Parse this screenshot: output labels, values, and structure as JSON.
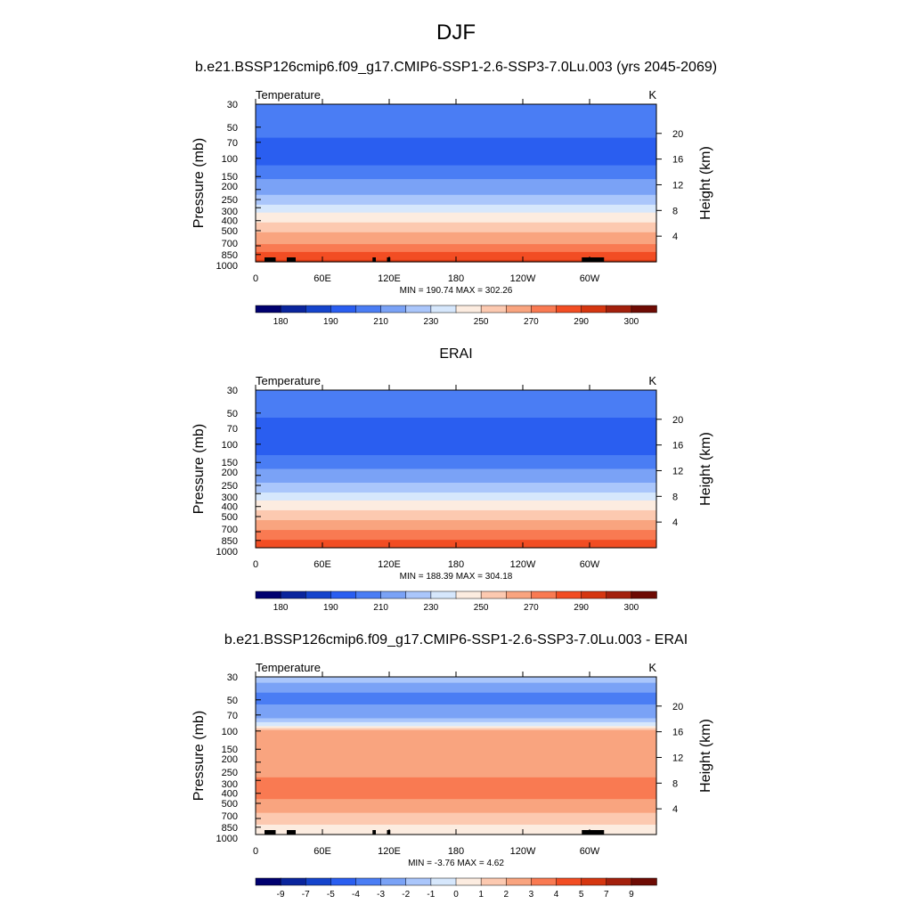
{
  "figure": {
    "title": "DJF",
    "panel_titles": [
      "b.e21.BSSP126cmip6.f09_g17.CMIP6-SSP1-2.6-SSP3-7.0Lu.003 (yrs 2045-2069)",
      "ERAI",
      "b.e21.BSSP126cmip6.f09_g17.CMIP6-SSP1-2.6-SSP3-7.0Lu.003 - ERAI"
    ]
  },
  "chart_data": [
    {
      "type": "heatmap",
      "title": "b.e21.BSSP126cmip6.f09_g17.CMIP6-SSP1-2.6-SSP3-7.0Lu.003 (yrs 2045-2069)",
      "left_label": "Temperature",
      "units": "K",
      "xlabel": "",
      "ylabel": "Pressure (mb)",
      "ylabel_right": "Height (km)",
      "x_ticks": [
        "0",
        "60E",
        "120E",
        "180",
        "120W",
        "60W"
      ],
      "y_ticks": [
        "30",
        "50",
        "70",
        "100",
        "150",
        "200",
        "250",
        "300",
        "400",
        "500",
        "700",
        "850",
        "1000"
      ],
      "y_ticks_right": [
        "20",
        "16",
        "12",
        "8",
        "4"
      ],
      "stats": "MIN = 190.74  MAX = 302.26",
      "colorbar_labels": [
        "180",
        "190",
        "210",
        "230",
        "250",
        "270",
        "290",
        "300"
      ],
      "profile": [
        {
          "p": 30,
          "v": 209
        },
        {
          "p": 50,
          "v": 204
        },
        {
          "p": 70,
          "v": 198
        },
        {
          "p": 100,
          "v": 196
        },
        {
          "p": 120,
          "v": 201
        },
        {
          "p": 150,
          "v": 209
        },
        {
          "p": 200,
          "v": 216
        },
        {
          "p": 250,
          "v": 226
        },
        {
          "p": 300,
          "v": 236
        },
        {
          "p": 400,
          "v": 249
        },
        {
          "p": 500,
          "v": 259
        },
        {
          "p": 700,
          "v": 273
        },
        {
          "p": 850,
          "v": 283
        },
        {
          "p": 1000,
          "v": 293
        }
      ],
      "topography": [
        [
          8,
          18
        ],
        [
          28,
          32
        ],
        [
          30,
          36
        ],
        [
          105,
          108
        ],
        [
          118,
          121
        ],
        [
          293,
          313
        ]
      ]
    },
    {
      "type": "heatmap",
      "title": "ERAI",
      "left_label": "Temperature",
      "units": "K",
      "xlabel": "",
      "ylabel": "Pressure (mb)",
      "ylabel_right": "Height (km)",
      "x_ticks": [
        "0",
        "60E",
        "120E",
        "180",
        "120W",
        "60W"
      ],
      "y_ticks": [
        "30",
        "50",
        "70",
        "100",
        "150",
        "200",
        "250",
        "300",
        "400",
        "500",
        "700",
        "850",
        "1000"
      ],
      "y_ticks_right": [
        "20",
        "16",
        "12",
        "8",
        "4"
      ],
      "stats": "MIN = 188.39  MAX = 304.18",
      "colorbar_labels": [
        "180",
        "190",
        "210",
        "230",
        "250",
        "270",
        "290",
        "300"
      ],
      "profile": [
        {
          "p": 30,
          "v": 206
        },
        {
          "p": 50,
          "v": 201
        },
        {
          "p": 70,
          "v": 196
        },
        {
          "p": 100,
          "v": 195
        },
        {
          "p": 120,
          "v": 199
        },
        {
          "p": 150,
          "v": 207
        },
        {
          "p": 200,
          "v": 214
        },
        {
          "p": 250,
          "v": 223
        },
        {
          "p": 300,
          "v": 233
        },
        {
          "p": 400,
          "v": 247
        },
        {
          "p": 500,
          "v": 257
        },
        {
          "p": 700,
          "v": 272
        },
        {
          "p": 850,
          "v": 282
        },
        {
          "p": 1000,
          "v": 292
        }
      ],
      "topography": []
    },
    {
      "type": "heatmap",
      "title": "b.e21.BSSP126cmip6.f09_g17.CMIP6-SSP1-2.6-SSP3-7.0Lu.003 - ERAI",
      "left_label": "Temperature",
      "units": "K",
      "xlabel": "",
      "ylabel": "Pressure (mb)",
      "ylabel_right": "Height (km)",
      "x_ticks": [
        "0",
        "60E",
        "120E",
        "180",
        "120W",
        "60W"
      ],
      "y_ticks": [
        "30",
        "50",
        "70",
        "100",
        "150",
        "200",
        "250",
        "300",
        "400",
        "500",
        "700",
        "850",
        "1000"
      ],
      "y_ticks_right": [
        "20",
        "16",
        "12",
        "8",
        "4"
      ],
      "stats": "MIN =  -3.76  MAX =   4.62",
      "colorbar_labels": [
        "-9",
        "-7",
        "-5",
        "-4",
        "-3",
        "-2",
        "-1",
        "0",
        "1",
        "2",
        "3",
        "4",
        "5",
        "7",
        "9"
      ],
      "profile": [
        {
          "p": 30,
          "v": -1.5
        },
        {
          "p": 45,
          "v": -3.4
        },
        {
          "p": 70,
          "v": -2.4
        },
        {
          "p": 85,
          "v": -0.5
        },
        {
          "p": 100,
          "v": 2.5
        },
        {
          "p": 150,
          "v": 2.5
        },
        {
          "p": 250,
          "v": 2.6
        },
        {
          "p": 300,
          "v": 3.3
        },
        {
          "p": 400,
          "v": 3.4
        },
        {
          "p": 500,
          "v": 2.4
        },
        {
          "p": 700,
          "v": 1.6
        },
        {
          "p": 850,
          "v": 0.6
        },
        {
          "p": 1000,
          "v": 0.8
        }
      ],
      "topography": [
        [
          8,
          18
        ],
        [
          28,
          32
        ],
        [
          30,
          36
        ],
        [
          105,
          108
        ],
        [
          118,
          121
        ],
        [
          293,
          313
        ]
      ]
    }
  ],
  "colors": {
    "temperature_scale": [
      "#00006f",
      "#0a259d",
      "#1544cc",
      "#2a5ef0",
      "#4a7df4",
      "#7aa2f6",
      "#aac6fb",
      "#d6e7fc",
      "#fcece0",
      "#fcc9b0",
      "#f9a47f",
      "#f97a52",
      "#f24d23",
      "#d53610",
      "#a3200c",
      "#6e0b04"
    ],
    "difference_scale": [
      "#00006f",
      "#0a259d",
      "#1544cc",
      "#2a5ef0",
      "#4a7df4",
      "#7aa2f6",
      "#aac6fb",
      "#d6e7fc",
      "#fcece0",
      "#fcc9b0",
      "#f9a47f",
      "#f97a52",
      "#f24d23",
      "#d53610",
      "#a3200c",
      "#6e0b04"
    ],
    "terrain": "#000000"
  }
}
